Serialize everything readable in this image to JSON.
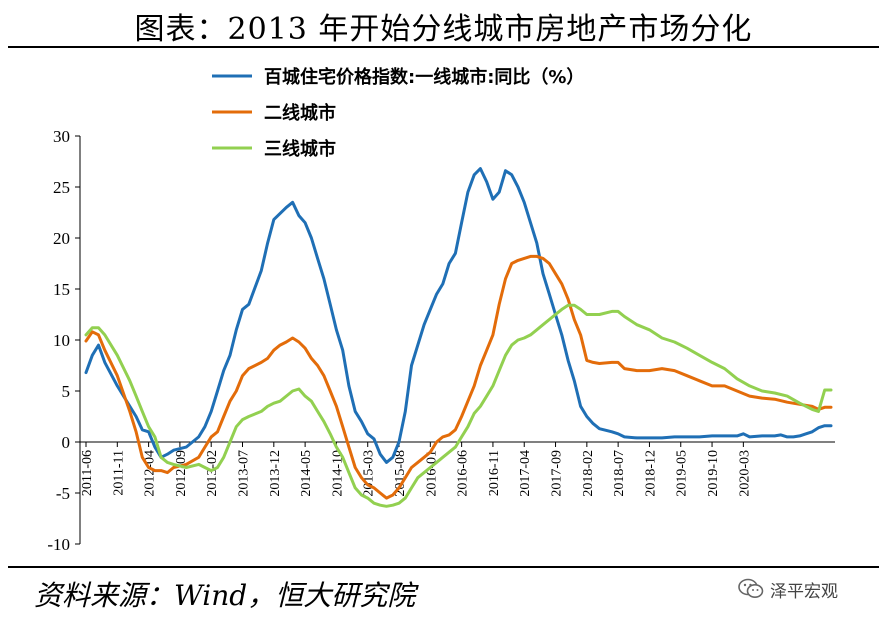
{
  "header": {
    "title": "图表：2013 年开始分线城市房地产市场分化"
  },
  "footer": {
    "source": "资料来源：Wind，恒大研究院",
    "watermark": "泽平宏观"
  },
  "chart_data": {
    "type": "line",
    "title": "图表：2013 年开始分线城市房地产市场分化",
    "xlabel": "",
    "ylabel": "",
    "ylim": [
      -10,
      30
    ],
    "yticks": [
      -10,
      -5,
      0,
      5,
      10,
      15,
      20,
      25,
      30
    ],
    "grid": false,
    "legend_position": "top-center",
    "x_start": "2011-06",
    "x_end": "2020-08",
    "xtick_labels": [
      "2011-06",
      "2011-11",
      "2012-04",
      "2012-09",
      "2013-02",
      "2013-07",
      "2013-12",
      "2014-05",
      "2014-10",
      "2015-03",
      "2015-08",
      "2016-01",
      "2016-06",
      "2016-11",
      "2017-04",
      "2017-09",
      "2018-02",
      "2018-07",
      "2018-12",
      "2019-05",
      "2019-10",
      "2020-03"
    ],
    "series": [
      {
        "name": "百城住宅价格指数:一线城市:同比（%）",
        "color": "#1f6fb5",
        "points": [
          [
            0,
            6.8
          ],
          [
            1,
            8.5
          ],
          [
            2,
            9.5
          ],
          [
            3,
            7.8
          ],
          [
            5,
            5.5
          ],
          [
            7,
            3.5
          ],
          [
            8,
            2.5
          ],
          [
            9,
            1.2
          ],
          [
            10,
            1.0
          ],
          [
            11,
            -0.5
          ],
          [
            12,
            -1.5
          ],
          [
            13,
            -1.2
          ],
          [
            14,
            -0.8
          ],
          [
            16,
            -0.5
          ],
          [
            18,
            0.5
          ],
          [
            19,
            1.5
          ],
          [
            20,
            3.0
          ],
          [
            21,
            5.0
          ],
          [
            22,
            7.0
          ],
          [
            23,
            8.5
          ],
          [
            24,
            11.0
          ],
          [
            25,
            13.0
          ],
          [
            26,
            13.5
          ],
          [
            28,
            16.8
          ],
          [
            29,
            19.5
          ],
          [
            30,
            21.8
          ],
          [
            32,
            23.0
          ],
          [
            33,
            23.5
          ],
          [
            34,
            22.2
          ],
          [
            35,
            21.5
          ],
          [
            36,
            20.0
          ],
          [
            37,
            18.0
          ],
          [
            38,
            16.0
          ],
          [
            39,
            13.5
          ],
          [
            40,
            11.0
          ],
          [
            41,
            9.0
          ],
          [
            42,
            5.5
          ],
          [
            43,
            3.0
          ],
          [
            44,
            2.0
          ],
          [
            45,
            0.8
          ],
          [
            46,
            0.3
          ],
          [
            47,
            -1.2
          ],
          [
            48,
            -2.0
          ],
          [
            49,
            -1.5
          ],
          [
            50,
            0.0
          ],
          [
            51,
            3.0
          ],
          [
            52,
            7.5
          ],
          [
            53,
            9.5
          ],
          [
            54,
            11.5
          ],
          [
            55,
            13.0
          ],
          [
            56,
            14.5
          ],
          [
            57,
            15.5
          ],
          [
            58,
            17.5
          ],
          [
            59,
            18.5
          ],
          [
            60,
            21.5
          ],
          [
            61,
            24.5
          ],
          [
            62,
            26.2
          ],
          [
            63,
            26.8
          ],
          [
            64,
            25.5
          ],
          [
            65,
            23.8
          ],
          [
            66,
            24.5
          ],
          [
            67,
            26.6
          ],
          [
            68,
            26.2
          ],
          [
            69,
            25.0
          ],
          [
            70,
            23.5
          ],
          [
            71,
            21.5
          ],
          [
            72,
            19.5
          ],
          [
            73,
            16.5
          ],
          [
            74,
            14.5
          ],
          [
            75,
            12.5
          ],
          [
            76,
            10.5
          ],
          [
            77,
            8.0
          ],
          [
            78,
            6.0
          ],
          [
            79,
            3.5
          ],
          [
            80,
            2.5
          ],
          [
            81,
            1.8
          ],
          [
            82,
            1.3
          ],
          [
            84,
            1.0
          ],
          [
            85,
            0.8
          ],
          [
            86,
            0.5
          ],
          [
            88,
            0.4
          ],
          [
            90,
            0.4
          ],
          [
            92,
            0.4
          ],
          [
            94,
            0.5
          ],
          [
            96,
            0.5
          ],
          [
            98,
            0.5
          ],
          [
            100,
            0.6
          ],
          [
            102,
            0.6
          ],
          [
            104,
            0.6
          ],
          [
            105,
            0.8
          ],
          [
            106,
            0.5
          ],
          [
            108,
            0.6
          ],
          [
            110,
            0.6
          ],
          [
            111,
            0.7
          ],
          [
            112,
            0.5
          ],
          [
            113,
            0.5
          ],
          [
            114,
            0.6
          ],
          [
            115,
            0.8
          ],
          [
            116,
            1.0
          ],
          [
            117,
            1.4
          ],
          [
            118,
            1.6
          ],
          [
            119,
            1.6
          ]
        ]
      },
      {
        "name": "二线城市",
        "color": "#e36c0a",
        "points": [
          [
            0,
            9.9
          ],
          [
            1,
            10.8
          ],
          [
            2,
            10.5
          ],
          [
            3,
            9.0
          ],
          [
            5,
            6.5
          ],
          [
            7,
            3.0
          ],
          [
            8,
            1.0
          ],
          [
            9,
            -1.5
          ],
          [
            10,
            -2.5
          ],
          [
            11,
            -2.8
          ],
          [
            12,
            -2.8
          ],
          [
            13,
            -3.0
          ],
          [
            14,
            -2.5
          ],
          [
            16,
            -2.2
          ],
          [
            18,
            -1.5
          ],
          [
            19,
            -0.5
          ],
          [
            20,
            0.5
          ],
          [
            21,
            1.0
          ],
          [
            22,
            2.5
          ],
          [
            23,
            4.0
          ],
          [
            24,
            5.0
          ],
          [
            25,
            6.5
          ],
          [
            26,
            7.2
          ],
          [
            28,
            7.8
          ],
          [
            29,
            8.2
          ],
          [
            30,
            9.0
          ],
          [
            31,
            9.5
          ],
          [
            32,
            9.8
          ],
          [
            33,
            10.2
          ],
          [
            34,
            9.8
          ],
          [
            35,
            9.2
          ],
          [
            36,
            8.2
          ],
          [
            37,
            7.5
          ],
          [
            38,
            6.5
          ],
          [
            39,
            5.0
          ],
          [
            40,
            3.5
          ],
          [
            41,
            1.5
          ],
          [
            42,
            -0.5
          ],
          [
            43,
            -2.5
          ],
          [
            44,
            -3.5
          ],
          [
            45,
            -4.2
          ],
          [
            46,
            -4.5
          ],
          [
            47,
            -5.0
          ],
          [
            48,
            -5.5
          ],
          [
            49,
            -5.2
          ],
          [
            50,
            -4.5
          ],
          [
            51,
            -3.5
          ],
          [
            52,
            -2.5
          ],
          [
            53,
            -2.0
          ],
          [
            54,
            -1.5
          ],
          [
            55,
            -1.0
          ],
          [
            56,
            0.0
          ],
          [
            57,
            0.5
          ],
          [
            58,
            0.7
          ],
          [
            59,
            1.2
          ],
          [
            60,
            2.5
          ],
          [
            61,
            4.0
          ],
          [
            62,
            5.5
          ],
          [
            63,
            7.5
          ],
          [
            64,
            9.0
          ],
          [
            65,
            10.5
          ],
          [
            66,
            13.5
          ],
          [
            67,
            16.0
          ],
          [
            68,
            17.5
          ],
          [
            69,
            17.8
          ],
          [
            70,
            18.0
          ],
          [
            71,
            18.2
          ],
          [
            72,
            18.2
          ],
          [
            73,
            18.0
          ],
          [
            74,
            17.5
          ],
          [
            75,
            16.5
          ],
          [
            76,
            15.5
          ],
          [
            77,
            14.0
          ],
          [
            78,
            12.0
          ],
          [
            79,
            10.5
          ],
          [
            80,
            8.0
          ],
          [
            81,
            7.8
          ],
          [
            82,
            7.7
          ],
          [
            84,
            7.8
          ],
          [
            85,
            7.8
          ],
          [
            86,
            7.2
          ],
          [
            88,
            7.0
          ],
          [
            90,
            7.0
          ],
          [
            92,
            7.2
          ],
          [
            94,
            7.0
          ],
          [
            96,
            6.5
          ],
          [
            98,
            6.0
          ],
          [
            100,
            5.5
          ],
          [
            102,
            5.5
          ],
          [
            104,
            5.0
          ],
          [
            106,
            4.5
          ],
          [
            108,
            4.3
          ],
          [
            110,
            4.2
          ],
          [
            112,
            3.9
          ],
          [
            114,
            3.7
          ],
          [
            116,
            3.5
          ],
          [
            117,
            3.2
          ],
          [
            118,
            3.4
          ],
          [
            119,
            3.4
          ]
        ]
      },
      {
        "name": "三线城市",
        "color": "#92d050",
        "points": [
          [
            0,
            10.5
          ],
          [
            1,
            11.2
          ],
          [
            2,
            11.2
          ],
          [
            3,
            10.5
          ],
          [
            5,
            8.5
          ],
          [
            7,
            6.0
          ],
          [
            8,
            4.5
          ],
          [
            9,
            3.0
          ],
          [
            10,
            1.5
          ],
          [
            11,
            0.5
          ],
          [
            12,
            -1.5
          ],
          [
            13,
            -2.0
          ],
          [
            14,
            -2.2
          ],
          [
            16,
            -2.5
          ],
          [
            18,
            -2.2
          ],
          [
            19,
            -2.5
          ],
          [
            20,
            -2.8
          ],
          [
            21,
            -2.5
          ],
          [
            22,
            -1.5
          ],
          [
            23,
            0.0
          ],
          [
            24,
            1.5
          ],
          [
            25,
            2.2
          ],
          [
            26,
            2.5
          ],
          [
            28,
            3.0
          ],
          [
            29,
            3.5
          ],
          [
            30,
            3.8
          ],
          [
            31,
            4.0
          ],
          [
            32,
            4.5
          ],
          [
            33,
            5.0
          ],
          [
            34,
            5.2
          ],
          [
            35,
            4.5
          ],
          [
            36,
            4.0
          ],
          [
            37,
            3.0
          ],
          [
            38,
            2.0
          ],
          [
            39,
            0.8
          ],
          [
            40,
            -0.5
          ],
          [
            41,
            -1.5
          ],
          [
            42,
            -3.0
          ],
          [
            43,
            -4.5
          ],
          [
            44,
            -5.2
          ],
          [
            45,
            -5.5
          ],
          [
            46,
            -6.0
          ],
          [
            47,
            -6.2
          ],
          [
            48,
            -6.3
          ],
          [
            49,
            -6.2
          ],
          [
            50,
            -6.0
          ],
          [
            51,
            -5.5
          ],
          [
            52,
            -4.5
          ],
          [
            53,
            -3.5
          ],
          [
            54,
            -3.0
          ],
          [
            55,
            -2.5
          ],
          [
            56,
            -2.0
          ],
          [
            57,
            -1.5
          ],
          [
            58,
            -1.0
          ],
          [
            59,
            -0.5
          ],
          [
            60,
            0.5
          ],
          [
            61,
            1.5
          ],
          [
            62,
            2.8
          ],
          [
            63,
            3.5
          ],
          [
            64,
            4.5
          ],
          [
            65,
            5.5
          ],
          [
            66,
            7.0
          ],
          [
            67,
            8.5
          ],
          [
            68,
            9.5
          ],
          [
            69,
            10.0
          ],
          [
            70,
            10.2
          ],
          [
            71,
            10.5
          ],
          [
            72,
            11.0
          ],
          [
            73,
            11.5
          ],
          [
            74,
            12.0
          ],
          [
            75,
            12.5
          ],
          [
            76,
            13.0
          ],
          [
            77,
            13.4
          ],
          [
            78,
            13.4
          ],
          [
            79,
            13.0
          ],
          [
            80,
            12.5
          ],
          [
            81,
            12.5
          ],
          [
            82,
            12.5
          ],
          [
            84,
            12.8
          ],
          [
            85,
            12.8
          ],
          [
            86,
            12.3
          ],
          [
            88,
            11.5
          ],
          [
            90,
            11.0
          ],
          [
            92,
            10.2
          ],
          [
            94,
            9.8
          ],
          [
            96,
            9.2
          ],
          [
            98,
            8.5
          ],
          [
            100,
            7.8
          ],
          [
            102,
            7.2
          ],
          [
            104,
            6.2
          ],
          [
            106,
            5.5
          ],
          [
            108,
            5.0
          ],
          [
            110,
            4.8
          ],
          [
            112,
            4.5
          ],
          [
            114,
            3.8
          ],
          [
            116,
            3.2
          ],
          [
            117,
            3.0
          ],
          [
            118,
            5.1
          ],
          [
            119,
            5.1
          ]
        ]
      }
    ]
  }
}
